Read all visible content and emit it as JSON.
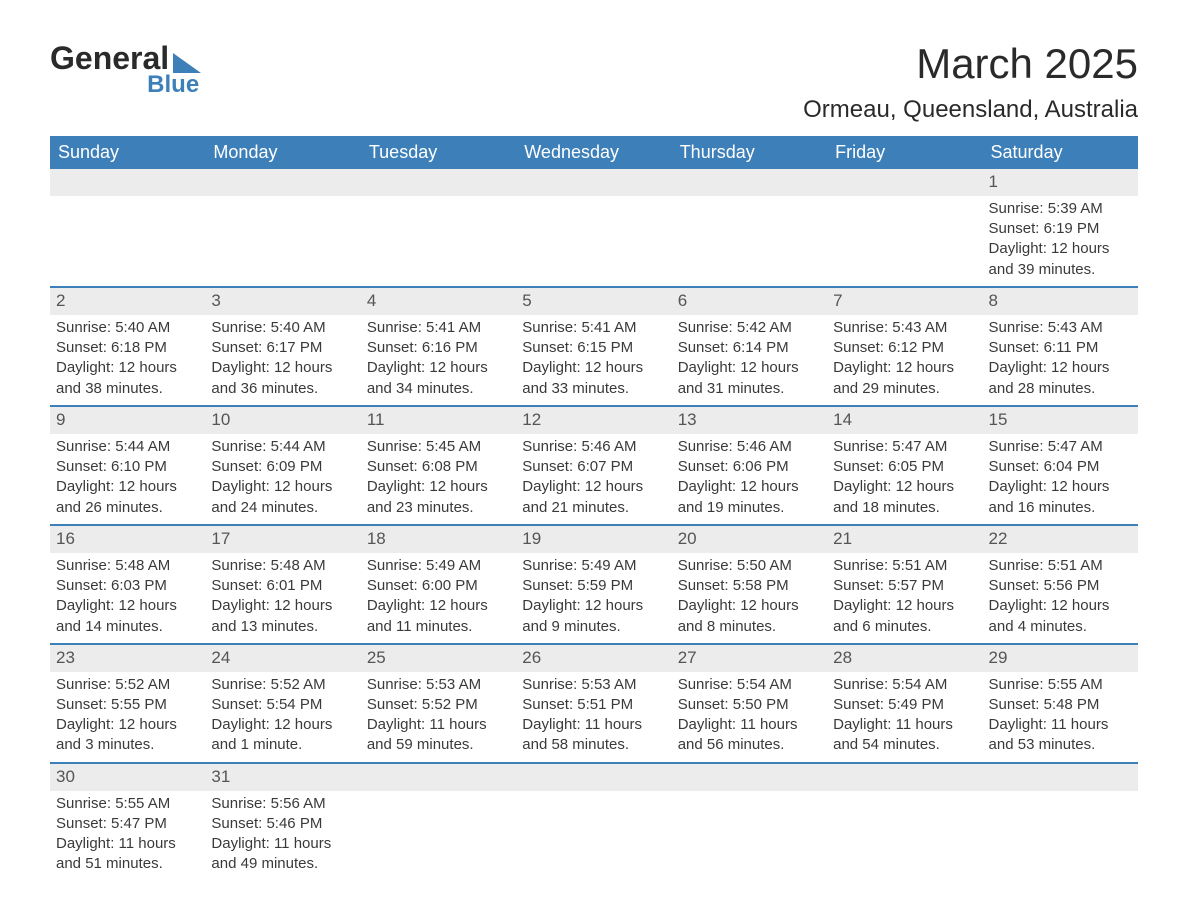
{
  "logo": {
    "text1": "General",
    "text2": "Blue",
    "triangle_color": "#3d7fb8"
  },
  "title": "March 2025",
  "location": "Ormeau, Queensland, Australia",
  "colors": {
    "header_bg": "#3d7fb8",
    "header_text": "#ffffff",
    "daynum_bg": "#ececec",
    "border": "#3d7fb8",
    "body_text": "#3a3a3a"
  },
  "weekdays": [
    "Sunday",
    "Monday",
    "Tuesday",
    "Wednesday",
    "Thursday",
    "Friday",
    "Saturday"
  ],
  "weeks": [
    [
      null,
      null,
      null,
      null,
      null,
      null,
      {
        "n": "1",
        "sr": "5:39 AM",
        "ss": "6:19 PM",
        "dl": "12 hours and 39 minutes."
      }
    ],
    [
      {
        "n": "2",
        "sr": "5:40 AM",
        "ss": "6:18 PM",
        "dl": "12 hours and 38 minutes."
      },
      {
        "n": "3",
        "sr": "5:40 AM",
        "ss": "6:17 PM",
        "dl": "12 hours and 36 minutes."
      },
      {
        "n": "4",
        "sr": "5:41 AM",
        "ss": "6:16 PM",
        "dl": "12 hours and 34 minutes."
      },
      {
        "n": "5",
        "sr": "5:41 AM",
        "ss": "6:15 PM",
        "dl": "12 hours and 33 minutes."
      },
      {
        "n": "6",
        "sr": "5:42 AM",
        "ss": "6:14 PM",
        "dl": "12 hours and 31 minutes."
      },
      {
        "n": "7",
        "sr": "5:43 AM",
        "ss": "6:12 PM",
        "dl": "12 hours and 29 minutes."
      },
      {
        "n": "8",
        "sr": "5:43 AM",
        "ss": "6:11 PM",
        "dl": "12 hours and 28 minutes."
      }
    ],
    [
      {
        "n": "9",
        "sr": "5:44 AM",
        "ss": "6:10 PM",
        "dl": "12 hours and 26 minutes."
      },
      {
        "n": "10",
        "sr": "5:44 AM",
        "ss": "6:09 PM",
        "dl": "12 hours and 24 minutes."
      },
      {
        "n": "11",
        "sr": "5:45 AM",
        "ss": "6:08 PM",
        "dl": "12 hours and 23 minutes."
      },
      {
        "n": "12",
        "sr": "5:46 AM",
        "ss": "6:07 PM",
        "dl": "12 hours and 21 minutes."
      },
      {
        "n": "13",
        "sr": "5:46 AM",
        "ss": "6:06 PM",
        "dl": "12 hours and 19 minutes."
      },
      {
        "n": "14",
        "sr": "5:47 AM",
        "ss": "6:05 PM",
        "dl": "12 hours and 18 minutes."
      },
      {
        "n": "15",
        "sr": "5:47 AM",
        "ss": "6:04 PM",
        "dl": "12 hours and 16 minutes."
      }
    ],
    [
      {
        "n": "16",
        "sr": "5:48 AM",
        "ss": "6:03 PM",
        "dl": "12 hours and 14 minutes."
      },
      {
        "n": "17",
        "sr": "5:48 AM",
        "ss": "6:01 PM",
        "dl": "12 hours and 13 minutes."
      },
      {
        "n": "18",
        "sr": "5:49 AM",
        "ss": "6:00 PM",
        "dl": "12 hours and 11 minutes."
      },
      {
        "n": "19",
        "sr": "5:49 AM",
        "ss": "5:59 PM",
        "dl": "12 hours and 9 minutes."
      },
      {
        "n": "20",
        "sr": "5:50 AM",
        "ss": "5:58 PM",
        "dl": "12 hours and 8 minutes."
      },
      {
        "n": "21",
        "sr": "5:51 AM",
        "ss": "5:57 PM",
        "dl": "12 hours and 6 minutes."
      },
      {
        "n": "22",
        "sr": "5:51 AM",
        "ss": "5:56 PM",
        "dl": "12 hours and 4 minutes."
      }
    ],
    [
      {
        "n": "23",
        "sr": "5:52 AM",
        "ss": "5:55 PM",
        "dl": "12 hours and 3 minutes."
      },
      {
        "n": "24",
        "sr": "5:52 AM",
        "ss": "5:54 PM",
        "dl": "12 hours and 1 minute."
      },
      {
        "n": "25",
        "sr": "5:53 AM",
        "ss": "5:52 PM",
        "dl": "11 hours and 59 minutes."
      },
      {
        "n": "26",
        "sr": "5:53 AM",
        "ss": "5:51 PM",
        "dl": "11 hours and 58 minutes."
      },
      {
        "n": "27",
        "sr": "5:54 AM",
        "ss": "5:50 PM",
        "dl": "11 hours and 56 minutes."
      },
      {
        "n": "28",
        "sr": "5:54 AM",
        "ss": "5:49 PM",
        "dl": "11 hours and 54 minutes."
      },
      {
        "n": "29",
        "sr": "5:55 AM",
        "ss": "5:48 PM",
        "dl": "11 hours and 53 minutes."
      }
    ],
    [
      {
        "n": "30",
        "sr": "5:55 AM",
        "ss": "5:47 PM",
        "dl": "11 hours and 51 minutes."
      },
      {
        "n": "31",
        "sr": "5:56 AM",
        "ss": "5:46 PM",
        "dl": "11 hours and 49 minutes."
      },
      null,
      null,
      null,
      null,
      null
    ]
  ],
  "labels": {
    "sunrise": "Sunrise:",
    "sunset": "Sunset:",
    "daylight": "Daylight:"
  }
}
